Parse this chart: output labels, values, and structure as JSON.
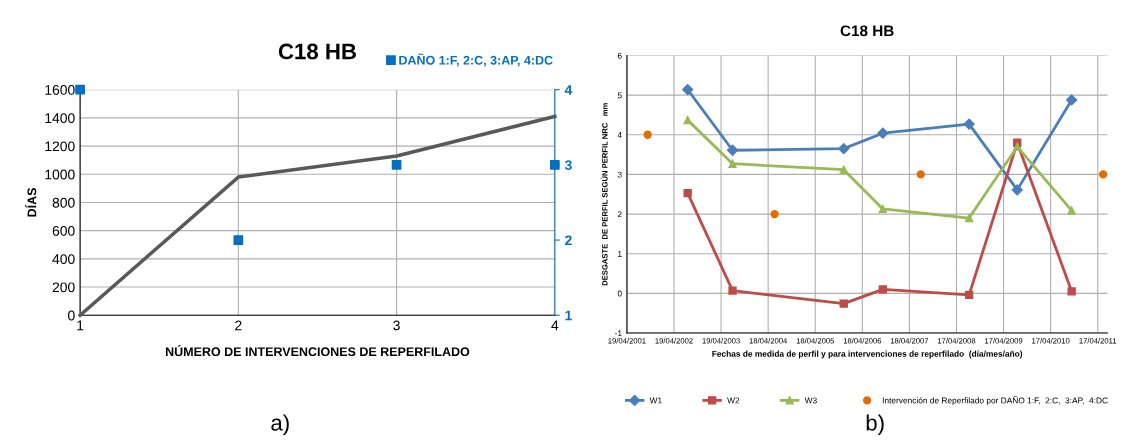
{
  "chart_data": [
    {
      "type": "line",
      "title": "C18 HB",
      "xlabel": "NÚMERO DE INTERVENCIONES DE REPERFILADO",
      "ylabel": "DÍAS",
      "x": [
        1,
        2,
        3,
        4
      ],
      "xlim": [
        1,
        4
      ],
      "xticks": [
        1,
        2,
        3,
        4
      ],
      "ylim": [
        0,
        1600
      ],
      "yticks": [
        0,
        200,
        400,
        600,
        800,
        1000,
        1200,
        1400,
        1600
      ],
      "y2lim": [
        1,
        4
      ],
      "y2ticks": [
        1,
        2,
        3,
        4
      ],
      "grid": true,
      "legend": "top right",
      "annotations": [
        "a)"
      ],
      "series": [
        {
          "color": "#595959",
          "values": [
            0,
            980,
            1130,
            1410
          ]
        },
        {
          "name": "DAÑO 1:F, 2:C, 3:AP, 4:DC",
          "type": "scatter",
          "axis": "y2",
          "marker": "square",
          "color": "#0070c0",
          "values": [
            4,
            2,
            3,
            3
          ]
        }
      ]
    },
    {
      "type": "line",
      "title": "C18 HB",
      "xlabel": "Fechas de medida de perfil y para intervenciones de reperfilado  (día/mes/año)",
      "ylabel": "DESGASTE  DE PERFIL SEGÚN PERFIL NRC   mm",
      "xlim": [
        "2001-04-19",
        "2011-07-01"
      ],
      "xticks": [
        {
          "value": "2001-04-19",
          "label": "19/04/2001"
        },
        {
          "value": "2002-04-19",
          "label": "19/04/2002"
        },
        {
          "value": "2003-04-19",
          "label": "19/04/2003"
        },
        {
          "value": "2004-04-18",
          "label": "18/04/2004"
        },
        {
          "value": "2005-04-18",
          "label": "18/04/2005"
        },
        {
          "value": "2006-04-18",
          "label": "18/04/2006"
        },
        {
          "value": "2007-04-18",
          "label": "18/04/2007"
        },
        {
          "value": "2008-04-17",
          "label": "17/04/2008"
        },
        {
          "value": "2009-04-17",
          "label": "17/04/2009"
        },
        {
          "value": "2010-04-17",
          "label": "17/04/2010"
        },
        {
          "value": "2011-04-17",
          "label": "17/04/2011"
        }
      ],
      "ylim": [
        -1,
        6
      ],
      "yticks": [
        -1,
        0,
        1,
        2,
        3,
        4,
        5,
        6
      ],
      "grid": true,
      "legend": "bottom",
      "annotations": [
        "b)"
      ],
      "series": [
        {
          "name": "W1",
          "marker": "diamond",
          "color": "#4a7ebb",
          "x": [
            "2002-08-03",
            "2003-07-17",
            "2005-11-25",
            "2006-09-24",
            "2008-07-24",
            "2009-08-01",
            "2010-09-27"
          ],
          "values": [
            5.14,
            3.61,
            3.65,
            4.04,
            4.27,
            2.61,
            4.88
          ]
        },
        {
          "name": "W2",
          "marker": "square",
          "color": "#be4b48",
          "x": [
            "2002-08-03",
            "2003-07-17",
            "2005-11-25",
            "2006-09-24",
            "2008-07-24",
            "2009-08-01",
            "2010-09-27"
          ],
          "values": [
            2.53,
            0.07,
            -0.26,
            0.1,
            -0.04,
            3.8,
            0.05
          ]
        },
        {
          "name": "W3",
          "marker": "triangle",
          "color": "#98b954",
          "x": [
            "2002-08-03",
            "2003-07-17",
            "2005-11-25",
            "2006-09-24",
            "2008-07-24",
            "2009-08-01",
            "2010-09-27"
          ],
          "values": [
            4.37,
            3.27,
            3.12,
            2.13,
            1.9,
            3.7,
            2.09
          ]
        },
        {
          "name": "Intervención de Reperfilado por DAÑO 1:F,  2:C,  3:AP,  4:DC",
          "type": "scatter",
          "marker": "circle",
          "color": "#e36c09",
          "x": [
            "2001-09-27",
            "2004-06-07",
            "2007-07-15",
            "2011-05-29"
          ],
          "values": [
            4,
            2,
            3,
            3
          ]
        }
      ]
    }
  ]
}
